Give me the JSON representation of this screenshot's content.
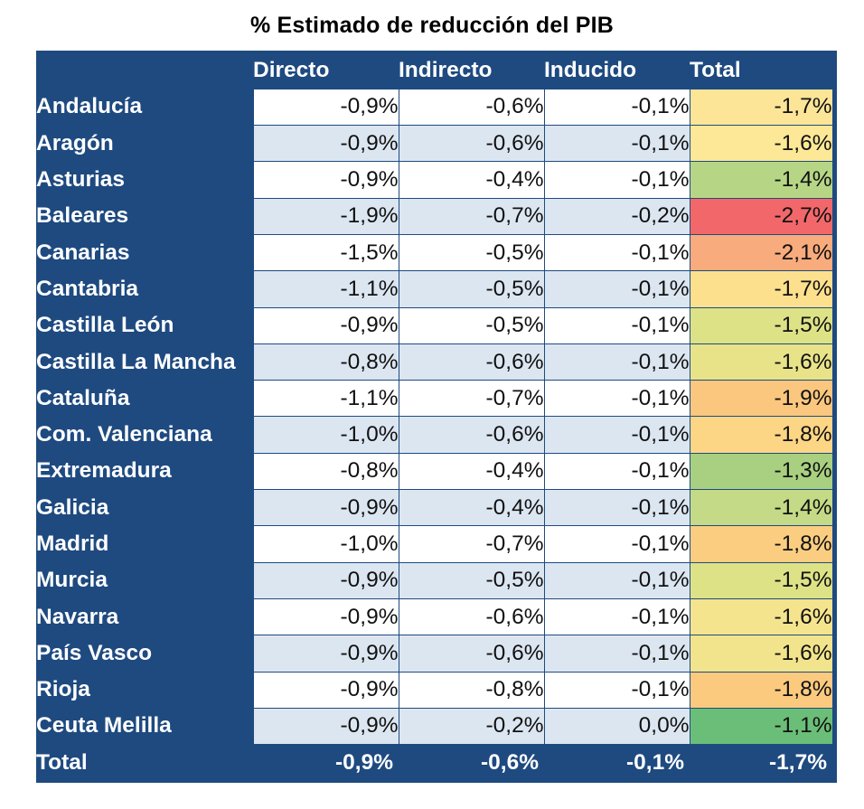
{
  "title": "% Estimado de reducción del PIB",
  "columns": [
    "Directo",
    "Indirecto",
    "Inducido",
    "Total"
  ],
  "rows": [
    {
      "region": "Andalucía",
      "directo": "-0,9%",
      "indirecto": "-0,6%",
      "inducido": "-0,1%",
      "total": "-1,7%",
      "total_color": "#fce597"
    },
    {
      "region": "Aragón",
      "directo": "-0,9%",
      "indirecto": "-0,6%",
      "inducido": "-0,1%",
      "total": "-1,6%",
      "total_color": "#fce896"
    },
    {
      "region": "Asturias",
      "directo": "-0,9%",
      "indirecto": "-0,4%",
      "inducido": "-0,1%",
      "total": "-1,4%",
      "total_color": "#b7d685"
    },
    {
      "region": "Baleares",
      "directo": "-1,9%",
      "indirecto": "-0,7%",
      "inducido": "-0,2%",
      "total": "-2,7%",
      "total_color": "#f2686a"
    },
    {
      "region": "Canarias",
      "directo": "-1,5%",
      "indirecto": "-0,5%",
      "inducido": "-0,1%",
      "total": "-2,1%",
      "total_color": "#f8ab7c"
    },
    {
      "region": "Cantabria",
      "directo": "-1,1%",
      "indirecto": "-0,5%",
      "inducido": "-0,1%",
      "total": "-1,7%",
      "total_color": "#fde08d"
    },
    {
      "region": "Castilla León",
      "directo": "-0,9%",
      "indirecto": "-0,5%",
      "inducido": "-0,1%",
      "total": "-1,5%",
      "total_color": "#dde287"
    },
    {
      "region": "Castilla La Mancha",
      "directo": "-0,8%",
      "indirecto": "-0,6%",
      "inducido": "-0,1%",
      "total": "-1,6%",
      "total_color": "#e8e389"
    },
    {
      "region": "Cataluña",
      "directo": "-1,1%",
      "indirecto": "-0,7%",
      "inducido": "-0,1%",
      "total": "-1,9%",
      "total_color": "#fbc77e"
    },
    {
      "region": "Com. Valenciana",
      "directo": "-1,0%",
      "indirecto": "-0,6%",
      "inducido": "-0,1%",
      "total": "-1,8%",
      "total_color": "#fcd585"
    },
    {
      "region": "Extremadura",
      "directo": "-0,8%",
      "indirecto": "-0,4%",
      "inducido": "-0,1%",
      "total": "-1,3%",
      "total_color": "#a8d080"
    },
    {
      "region": "Galicia",
      "directo": "-0,9%",
      "indirecto": "-0,4%",
      "inducido": "-0,1%",
      "total": "-1,4%",
      "total_color": "#c4da86"
    },
    {
      "region": "Madrid",
      "directo": "-1,0%",
      "indirecto": "-0,7%",
      "inducido": "-0,1%",
      "total": "-1,8%",
      "total_color": "#fbcd81"
    },
    {
      "region": "Murcia",
      "directo": "-0,9%",
      "indirecto": "-0,5%",
      "inducido": "-0,1%",
      "total": "-1,5%",
      "total_color": "#dde287"
    },
    {
      "region": "Navarra",
      "directo": "-0,9%",
      "indirecto": "-0,6%",
      "inducido": "-0,1%",
      "total": "-1,6%",
      "total_color": "#f5e48e"
    },
    {
      "region": "País Vasco",
      "directo": "-0,9%",
      "indirecto": "-0,6%",
      "inducido": "-0,1%",
      "total": "-1,6%",
      "total_color": "#f2e48c"
    },
    {
      "region": "Rioja",
      "directo": "-0,9%",
      "indirecto": "-0,8%",
      "inducido": "-0,1%",
      "total": "-1,8%",
      "total_color": "#fbca7f"
    },
    {
      "region": "Ceuta Melilla",
      "directo": "-0,9%",
      "indirecto": "-0,2%",
      "inducido": "0,0%",
      "total": "-1,1%",
      "total_color": "#6bbe78"
    }
  ],
  "total_row": {
    "label": "Total",
    "directo": "-0,9%",
    "indirecto": "-0,6%",
    "inducido": "-0,1%",
    "total": "-1,7%"
  }
}
